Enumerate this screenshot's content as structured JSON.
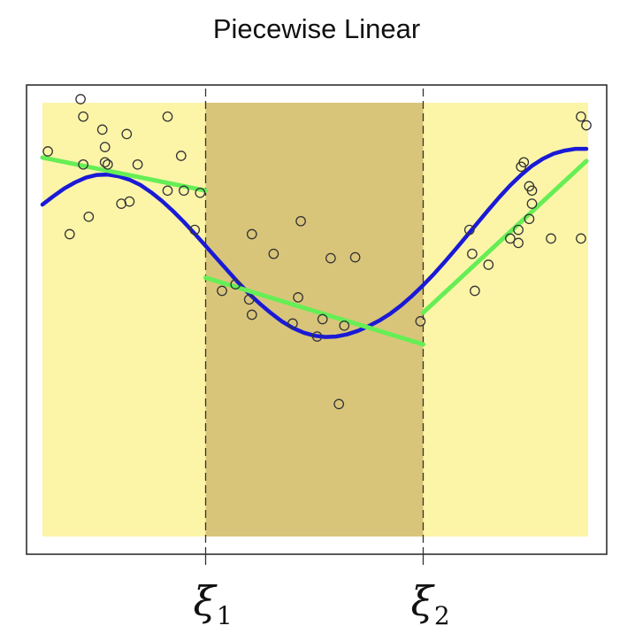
{
  "chart_data": {
    "type": "scatter",
    "title": "Piecewise Linear",
    "xlabel": "",
    "ylabel": "",
    "xlim": [
      0,
      1
    ],
    "ylim": [
      0,
      1
    ],
    "grid": false,
    "knots": [
      {
        "symbol": "ξ",
        "subscript": "1",
        "x": 0.3
      },
      {
        "symbol": "ξ",
        "subscript": "2",
        "x": 0.7
      }
    ],
    "region_colors": {
      "outer": "#fcf5a8",
      "middle": "#d9c57a"
    },
    "points": [
      [
        0.01,
        0.88
      ],
      [
        0.07,
        1.0
      ],
      [
        0.075,
        0.96
      ],
      [
        0.11,
        0.93
      ],
      [
        0.155,
        0.92
      ],
      [
        0.115,
        0.89
      ],
      [
        0.075,
        0.85
      ],
      [
        0.115,
        0.855
      ],
      [
        0.12,
        0.85
      ],
      [
        0.175,
        0.85
      ],
      [
        0.23,
        0.96
      ],
      [
        0.255,
        0.87
      ],
      [
        0.23,
        0.79
      ],
      [
        0.26,
        0.79
      ],
      [
        0.29,
        0.785
      ],
      [
        0.145,
        0.76
      ],
      [
        0.16,
        0.765
      ],
      [
        0.085,
        0.73
      ],
      [
        0.05,
        0.69
      ],
      [
        0.28,
        0.7
      ],
      [
        0.385,
        0.69
      ],
      [
        0.475,
        0.72
      ],
      [
        0.425,
        0.645
      ],
      [
        0.53,
        0.635
      ],
      [
        0.575,
        0.637
      ],
      [
        0.355,
        0.575
      ],
      [
        0.33,
        0.56
      ],
      [
        0.47,
        0.545
      ],
      [
        0.38,
        0.54
      ],
      [
        0.385,
        0.505
      ],
      [
        0.515,
        0.495
      ],
      [
        0.46,
        0.485
      ],
      [
        0.555,
        0.48
      ],
      [
        0.505,
        0.455
      ],
      [
        0.695,
        0.49
      ],
      [
        0.545,
        0.3
      ],
      [
        0.785,
        0.7
      ],
      [
        0.875,
        0.7
      ],
      [
        0.875,
        0.67
      ],
      [
        0.86,
        0.68
      ],
      [
        0.935,
        0.68
      ],
      [
        0.895,
        0.725
      ],
      [
        0.895,
        0.8
      ],
      [
        0.88,
        0.845
      ],
      [
        0.885,
        0.855
      ],
      [
        0.9,
        0.79
      ],
      [
        0.9,
        0.76
      ],
      [
        0.99,
        0.96
      ],
      [
        1.0,
        0.94
      ],
      [
        0.99,
        0.68
      ],
      [
        0.795,
        0.56
      ],
      [
        0.82,
        0.62
      ],
      [
        0.79,
        0.645
      ]
    ],
    "series": [
      {
        "color": "#1a1ad6",
        "x": [
          0.0,
          0.02,
          0.04,
          0.06,
          0.08,
          0.1,
          0.12,
          0.14,
          0.16,
          0.18,
          0.2,
          0.22,
          0.24,
          0.26,
          0.28,
          0.3,
          0.32,
          0.34,
          0.36,
          0.38,
          0.4,
          0.42,
          0.44,
          0.46,
          0.48,
          0.5,
          0.52,
          0.54,
          0.56,
          0.58,
          0.6,
          0.62,
          0.64,
          0.66,
          0.68,
          0.7,
          0.72,
          0.74,
          0.76,
          0.78,
          0.8,
          0.82,
          0.84,
          0.86,
          0.88,
          0.9,
          0.92,
          0.94,
          0.96,
          0.98,
          1.0
        ],
        "y": [
          0.758,
          0.777,
          0.795,
          0.809,
          0.82,
          0.826,
          0.827,
          0.823,
          0.815,
          0.803,
          0.786,
          0.766,
          0.743,
          0.718,
          0.691,
          0.663,
          0.635,
          0.607,
          0.579,
          0.553,
          0.53,
          0.509,
          0.49,
          0.475,
          0.464,
          0.457,
          0.454,
          0.455,
          0.46,
          0.468,
          0.479,
          0.492,
          0.508,
          0.527,
          0.549,
          0.573,
          0.599,
          0.627,
          0.656,
          0.686,
          0.716,
          0.746,
          0.775,
          0.802,
          0.826,
          0.847,
          0.863,
          0.875,
          0.882,
          0.886,
          0.886
        ]
      },
      {
        "color": "#66ee55",
        "x": [
          0.0,
          0.3
        ],
        "y": [
          0.866,
          0.79
        ]
      },
      {
        "color": "#66ee55",
        "x": [
          0.3,
          0.7
        ],
        "y": [
          0.59,
          0.437
        ]
      },
      {
        "color": "#66ee55",
        "x": [
          0.7,
          1.0
        ],
        "y": [
          0.51,
          0.858
        ]
      }
    ]
  }
}
